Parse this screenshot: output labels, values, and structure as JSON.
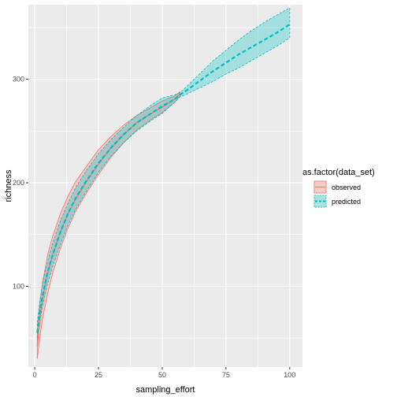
{
  "chart_data": {
    "type": "line",
    "xlabel": "sampling_effort",
    "ylabel": "richness",
    "xlim": [
      -2.5,
      105
    ],
    "ylim": [
      22,
      372
    ],
    "x_ticks": [
      0,
      25,
      50,
      75,
      100
    ],
    "y_ticks": [
      100,
      200,
      300
    ],
    "grid": true,
    "legend_position": "right",
    "legend_title": "as.factor(data_set)",
    "colors": {
      "observed": "#F8766D",
      "predicted": "#00BFC4",
      "panel": "#EBEBEB",
      "grid": "#FFFFFF"
    },
    "series": [
      {
        "name": "observed",
        "line_style": "solid",
        "x": [
          1,
          2,
          3,
          5,
          7,
          10,
          13,
          16,
          20,
          25,
          30,
          35,
          40,
          45,
          50,
          55,
          57
        ],
        "y": [
          42,
          68,
          87,
          112,
          130,
          152,
          170,
          184,
          200,
          218,
          234,
          247,
          258,
          266,
          273,
          281,
          286
        ],
        "lower": [
          30,
          50,
          68,
          92,
          112,
          136,
          156,
          172,
          189,
          208,
          225,
          239,
          251,
          260,
          268,
          278,
          284
        ],
        "upper": [
          56,
          84,
          103,
          130,
          148,
          170,
          187,
          201,
          215,
          232,
          245,
          256,
          265,
          272,
          279,
          284,
          288
        ]
      },
      {
        "name": "predicted",
        "line_style": "dashed",
        "x": [
          1,
          2,
          3,
          5,
          7,
          10,
          13,
          16,
          20,
          25,
          30,
          35,
          40,
          45,
          50,
          55,
          57,
          60,
          65,
          70,
          75,
          80,
          85,
          90,
          95,
          100
        ],
        "y": [
          55,
          75,
          90,
          113,
          130,
          152,
          170,
          185,
          201,
          219,
          234,
          247,
          258,
          266,
          274,
          281,
          285,
          290,
          299,
          308,
          316,
          324,
          331,
          338,
          345,
          353
        ],
        "lower": [
          48,
          66,
          80,
          102,
          119,
          140,
          159,
          174,
          191,
          210,
          226,
          239,
          250,
          259,
          267,
          278,
          283,
          286,
          292,
          298,
          305,
          311,
          318,
          325,
          332,
          340
        ],
        "upper": [
          65,
          86,
          102,
          124,
          141,
          163,
          180,
          195,
          211,
          228,
          242,
          254,
          265,
          274,
          282,
          285,
          287,
          294,
          306,
          318,
          328,
          338,
          347,
          355,
          362,
          369
        ]
      }
    ]
  }
}
